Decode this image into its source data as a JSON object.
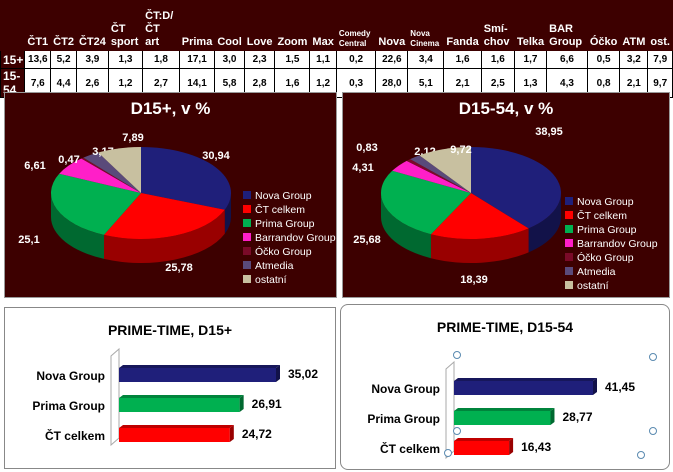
{
  "table": {
    "headers": [
      "",
      "ČT1",
      "ČT2",
      "ČT24",
      "ČT sport",
      "ČT:D/ ČT art",
      "Prima",
      "Cool",
      "Love",
      "Zoom",
      "Max",
      "Comedy Central",
      "Nova",
      "Nova Cinema",
      "Fanda",
      "Smí-chov",
      "Telka",
      "BAR Group",
      "Óčko",
      "ATM",
      "ost."
    ],
    "rows": [
      {
        "label": "15+",
        "values": [
          "13,6",
          "5,2",
          "3,9",
          "1,3",
          "1,8",
          "17,1",
          "3,0",
          "2,3",
          "1,5",
          "1,1",
          "0,2",
          "22,6",
          "3,4",
          "1,6",
          "1,6",
          "1,7",
          "6,6",
          "0,5",
          "3,2",
          "7,9"
        ]
      },
      {
        "label": "15-54",
        "values": [
          "7,6",
          "4,4",
          "2,6",
          "1,2",
          "2,7",
          "14,1",
          "5,8",
          "2,8",
          "1,6",
          "1,2",
          "0,3",
          "28,0",
          "5,1",
          "2,1",
          "2,5",
          "1,3",
          "4,3",
          "0,8",
          "2,1",
          "9,7"
        ]
      }
    ]
  },
  "chart_data": [
    {
      "type": "pie",
      "title": "D15+, v %",
      "legend_position": "right",
      "categories": [
        "Nova Group",
        "ČT celkem",
        "Prima Group",
        "Barrandov Group",
        "Óčko Group",
        "Atmedia",
        "ostatní"
      ],
      "values": [
        30.94,
        25.78,
        25.1,
        6.61,
        0.47,
        3.17,
        7.89
      ],
      "labels": [
        "30,94",
        "25,78",
        "25,1",
        "6,61",
        "0,47",
        "3,17",
        "7,89"
      ],
      "colors": [
        "#1f1f7a",
        "#ff0000",
        "#00b050",
        "#ff1fc8",
        "#7a0a28",
        "#5a4a7a",
        "#c8c0a0"
      ]
    },
    {
      "type": "pie",
      "title": "D15-54, v %",
      "legend_position": "right",
      "categories": [
        "Nova Group",
        "ČT celkem",
        "Prima Group",
        "Barrandov Group",
        "Óčko Group",
        "Atmedia",
        "ostatní"
      ],
      "values": [
        38.95,
        18.39,
        25.68,
        4.31,
        0.83,
        2.12,
        9.72
      ],
      "labels": [
        "38,95",
        "18,39",
        "25,68",
        "4,31",
        "0,83",
        "2,12",
        "9,72"
      ],
      "colors": [
        "#1f1f7a",
        "#ff0000",
        "#00b050",
        "#ff1fc8",
        "#7a0a28",
        "#5a4a7a",
        "#c8c0a0"
      ]
    },
    {
      "type": "bar",
      "orientation": "horizontal",
      "title": "PRIME-TIME, D15+",
      "categories": [
        "Nova Group",
        "Prima Group",
        "ČT celkem"
      ],
      "values": [
        35.02,
        26.91,
        24.72
      ],
      "labels": [
        "35,02",
        "26,91",
        "24,72"
      ],
      "colors": [
        "#1f1f7a",
        "#00b050",
        "#ff0000"
      ]
    },
    {
      "type": "bar",
      "orientation": "horizontal",
      "title": "PRIME-TIME, D15-54",
      "categories": [
        "Nova Group",
        "Prima Group",
        "ČT celkem"
      ],
      "values": [
        41.45,
        28.77,
        16.43
      ],
      "labels": [
        "41,45",
        "28,77",
        "16,43"
      ],
      "colors": [
        "#1f1f7a",
        "#00b050",
        "#ff0000"
      ]
    }
  ]
}
